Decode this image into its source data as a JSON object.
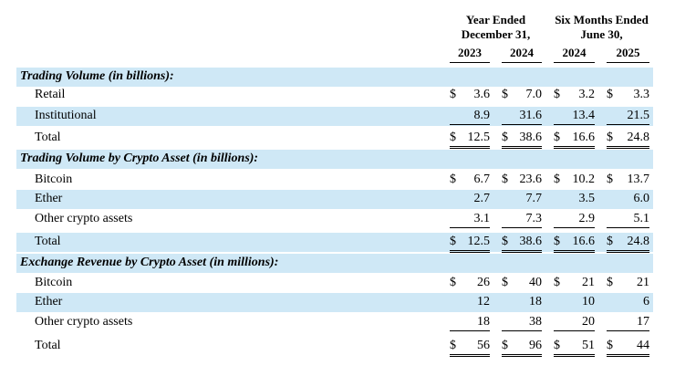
{
  "header": {
    "groups": [
      {
        "lines": [
          "Year Ended",
          "December 31,"
        ]
      },
      {
        "lines": [
          "Six Months Ended",
          "June 30,"
        ]
      }
    ],
    "years": [
      "2023",
      "2024",
      "2024",
      "2025"
    ]
  },
  "table": {
    "sections": [
      {
        "title": "Trading Volume (in billions):",
        "rows": [
          {
            "label": "Retail",
            "currency": "$",
            "values": [
              "3.6",
              "7.0",
              "3.2",
              "3.3"
            ]
          },
          {
            "label": "Institutional",
            "values": [
              "8.9",
              "31.6",
              "13.4",
              "21.5"
            ]
          },
          {
            "label": "Total",
            "currency": "$",
            "values": [
              "12.5",
              "38.6",
              "16.6",
              "24.8"
            ]
          }
        ]
      },
      {
        "title": "Trading Volume by Crypto Asset (in billions):",
        "rows": [
          {
            "label": "Bitcoin",
            "currency": "$",
            "values": [
              "6.7",
              "23.6",
              "10.2",
              "13.7"
            ]
          },
          {
            "label": "Ether",
            "values": [
              "2.7",
              "7.7",
              "3.5",
              "6.0"
            ]
          },
          {
            "label": "Other crypto assets",
            "values": [
              "3.1",
              "7.3",
              "2.9",
              "5.1"
            ]
          },
          {
            "label": "Total",
            "currency": "$",
            "values": [
              "12.5",
              "38.6",
              "16.6",
              "24.8"
            ]
          }
        ]
      },
      {
        "title": "Exchange Revenue by Crypto Asset (in millions):",
        "rows": [
          {
            "label": "Bitcoin",
            "currency": "$",
            "values": [
              "26",
              "40",
              "21",
              "21"
            ]
          },
          {
            "label": "Ether",
            "values": [
              "12",
              "18",
              "10",
              "6"
            ]
          },
          {
            "label": "Other crypto assets",
            "values": [
              "18",
              "38",
              "20",
              "17"
            ]
          },
          {
            "label": "Total",
            "currency": "$",
            "values": [
              "56",
              "96",
              "51",
              "44"
            ]
          }
        ]
      }
    ]
  }
}
